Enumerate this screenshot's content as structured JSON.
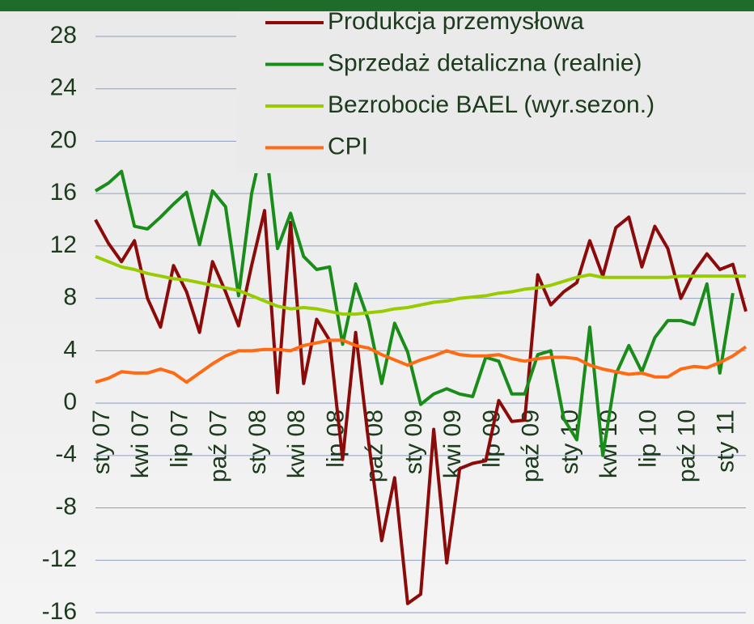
{
  "chart_data": {
    "type": "line",
    "categories": [
      "sty 07",
      null,
      null,
      "kwi 07",
      null,
      null,
      "lip 07",
      null,
      null,
      "paź 07",
      null,
      null,
      "sty 08",
      null,
      null,
      "kwi 08",
      null,
      null,
      "lip 08",
      null,
      null,
      "paź 08",
      null,
      null,
      "sty 09",
      null,
      null,
      "kwi 09",
      null,
      null,
      "lip 09",
      null,
      null,
      "paź 09",
      null,
      null,
      "sty 10",
      null,
      null,
      "kwi 10",
      null,
      null,
      "lip 10",
      null,
      null,
      "paź 10",
      null,
      null,
      "sty 11",
      null,
      null
    ],
    "series": [
      {
        "name": "Produkcja przemysłowa",
        "color": "#8b0a0a",
        "values": [
          14.0,
          12.2,
          10.8,
          12.4,
          8.0,
          5.8,
          10.5,
          8.5,
          5.4,
          10.8,
          8.5,
          5.9,
          10.5,
          14.7,
          0.8,
          13.8,
          1.5,
          6.4,
          4.8,
          -4.3,
          5.4,
          -3.0,
          -10.5,
          -5.7,
          -15.3,
          -14.6,
          -2.0,
          -12.2,
          -5.0,
          -4.6,
          -4.4,
          0.2,
          -1.4,
          -1.3,
          9.8,
          7.5,
          8.5,
          9.2,
          12.4,
          9.7,
          13.4,
          14.2,
          10.4,
          13.5,
          11.8,
          8.0,
          10.0,
          11.4,
          10.2,
          10.6,
          7.0
        ]
      },
      {
        "name": "Sprzedaż detaliczna (realnie)",
        "color": "#1a8c1a",
        "values": [
          16.2,
          16.8,
          17.7,
          13.5,
          13.3,
          14.2,
          15.2,
          16.1,
          12.1,
          16.2,
          15.0,
          8.2,
          16.0,
          20.4,
          11.8,
          14.5,
          11.2,
          10.2,
          10.4,
          4.5,
          9.1,
          6.3,
          1.5,
          6.1,
          3.9,
          -0.1,
          0.7,
          1.1,
          0.7,
          0.5,
          3.5,
          3.2,
          0.7,
          0.7,
          3.7,
          4.0,
          -1.2,
          -2.8,
          5.8,
          -4.0,
          2.2,
          4.4,
          2.4,
          5.0,
          6.3,
          6.3,
          6.0,
          9.1,
          2.3,
          8.4,
          null
        ]
      },
      {
        "name": "Bezrobocie BAEL (wyr.sezon.)",
        "color": "#99cc00",
        "values": [
          11.2,
          10.8,
          10.4,
          10.2,
          9.9,
          9.7,
          9.5,
          9.4,
          9.2,
          9.0,
          8.8,
          8.6,
          8.2,
          7.8,
          7.4,
          7.2,
          7.3,
          7.2,
          7.0,
          6.8,
          6.8,
          6.9,
          7.0,
          7.2,
          7.3,
          7.5,
          7.7,
          7.8,
          8.0,
          8.1,
          8.2,
          8.4,
          8.5,
          8.7,
          8.8,
          9.0,
          9.3,
          9.6,
          9.8,
          9.6,
          9.6,
          9.6,
          9.6,
          9.6,
          9.6,
          9.7,
          9.7,
          9.7,
          9.7,
          9.7,
          9.7
        ]
      },
      {
        "name": "CPI",
        "color": "#ff6a13",
        "values": [
          1.6,
          1.9,
          2.4,
          2.3,
          2.3,
          2.6,
          2.3,
          1.6,
          2.3,
          3.0,
          3.6,
          4.0,
          4.0,
          4.1,
          4.1,
          4.0,
          4.4,
          4.6,
          4.8,
          4.8,
          4.4,
          4.2,
          3.7,
          3.3,
          2.9,
          3.3,
          3.6,
          4.0,
          3.7,
          3.6,
          3.6,
          3.7,
          3.4,
          3.2,
          3.4,
          3.5,
          3.5,
          3.4,
          2.9,
          2.6,
          2.4,
          2.2,
          2.3,
          2.0,
          2.0,
          2.6,
          2.8,
          2.7,
          3.1,
          3.6,
          4.3
        ]
      }
    ],
    "ylim": [
      -16,
      28
    ],
    "yticks": [
      -16,
      -12,
      -8,
      -4,
      0,
      4,
      8,
      12,
      16,
      20,
      24,
      28
    ],
    "grid": true,
    "legend": "top-right"
  }
}
